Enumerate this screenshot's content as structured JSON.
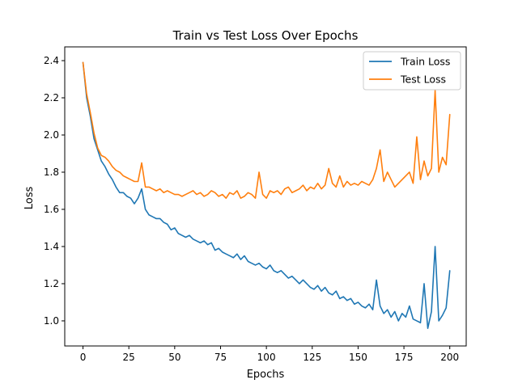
{
  "chart_data": {
    "type": "line",
    "title": "Train vs Test Loss Over Epochs",
    "xlabel": "Epochs",
    "ylabel": "Loss",
    "xlim": [
      -9.95,
      208.95
    ],
    "ylim": [
      0.865,
      2.474
    ],
    "xticks": [
      0,
      25,
      50,
      75,
      100,
      125,
      150,
      175,
      200
    ],
    "yticks": [
      1.0,
      1.2,
      1.4,
      1.6,
      1.8,
      2.0,
      2.2,
      2.4
    ],
    "grid": false,
    "legend": "top-right",
    "series": [
      {
        "name": "Train Loss",
        "color": "#1f77b4",
        "x": [
          0,
          2,
          4,
          6,
          8,
          10,
          12,
          14,
          16,
          18,
          20,
          22,
          24,
          26,
          28,
          30,
          32,
          34,
          36,
          38,
          40,
          42,
          44,
          46,
          48,
          50,
          52,
          54,
          56,
          58,
          60,
          62,
          64,
          66,
          68,
          70,
          72,
          74,
          76,
          78,
          80,
          82,
          84,
          86,
          88,
          90,
          92,
          94,
          96,
          98,
          100,
          102,
          104,
          106,
          108,
          110,
          112,
          114,
          116,
          118,
          120,
          122,
          124,
          126,
          128,
          130,
          132,
          134,
          136,
          138,
          140,
          142,
          144,
          146,
          148,
          150,
          152,
          154,
          156,
          158,
          160,
          162,
          164,
          166,
          168,
          170,
          172,
          174,
          176,
          178,
          180,
          182,
          184,
          186,
          188,
          190,
          192,
          194,
          196,
          198,
          200
        ],
        "y": [
          2.39,
          2.2,
          2.1,
          1.98,
          1.92,
          1.86,
          1.83,
          1.79,
          1.76,
          1.72,
          1.69,
          1.69,
          1.67,
          1.66,
          1.63,
          1.66,
          1.71,
          1.6,
          1.57,
          1.56,
          1.55,
          1.55,
          1.53,
          1.52,
          1.49,
          1.5,
          1.47,
          1.46,
          1.45,
          1.46,
          1.44,
          1.43,
          1.42,
          1.43,
          1.41,
          1.42,
          1.38,
          1.39,
          1.37,
          1.36,
          1.35,
          1.34,
          1.36,
          1.33,
          1.35,
          1.32,
          1.31,
          1.3,
          1.31,
          1.29,
          1.28,
          1.3,
          1.27,
          1.26,
          1.27,
          1.25,
          1.23,
          1.24,
          1.22,
          1.2,
          1.22,
          1.2,
          1.18,
          1.17,
          1.19,
          1.16,
          1.18,
          1.15,
          1.14,
          1.16,
          1.12,
          1.13,
          1.11,
          1.12,
          1.09,
          1.1,
          1.08,
          1.07,
          1.09,
          1.06,
          1.22,
          1.08,
          1.04,
          1.06,
          1.02,
          1.05,
          1.0,
          1.04,
          1.02,
          1.08,
          1.01,
          1.0,
          0.99,
          1.2,
          0.96,
          1.05,
          1.4,
          1.0,
          1.03,
          1.07,
          1.27
        ]
      },
      {
        "name": "Test Loss",
        "color": "#ff7f0e",
        "x": [
          0,
          2,
          4,
          6,
          8,
          10,
          12,
          14,
          16,
          18,
          20,
          22,
          24,
          26,
          28,
          30,
          32,
          34,
          36,
          38,
          40,
          42,
          44,
          46,
          48,
          50,
          52,
          54,
          56,
          58,
          60,
          62,
          64,
          66,
          68,
          70,
          72,
          74,
          76,
          78,
          80,
          82,
          84,
          86,
          88,
          90,
          92,
          94,
          96,
          98,
          100,
          102,
          104,
          106,
          108,
          110,
          112,
          114,
          116,
          118,
          120,
          122,
          124,
          126,
          128,
          130,
          132,
          134,
          136,
          138,
          140,
          142,
          144,
          146,
          148,
          150,
          152,
          154,
          156,
          158,
          160,
          162,
          164,
          166,
          168,
          170,
          172,
          174,
          176,
          178,
          180,
          182,
          184,
          186,
          188,
          190,
          192,
          194,
          196,
          198,
          200
        ],
        "y": [
          2.39,
          2.22,
          2.12,
          2.01,
          1.93,
          1.89,
          1.88,
          1.86,
          1.83,
          1.81,
          1.8,
          1.78,
          1.77,
          1.76,
          1.75,
          1.75,
          1.85,
          1.72,
          1.72,
          1.71,
          1.7,
          1.71,
          1.69,
          1.7,
          1.69,
          1.68,
          1.68,
          1.67,
          1.68,
          1.69,
          1.7,
          1.68,
          1.69,
          1.67,
          1.68,
          1.7,
          1.69,
          1.67,
          1.68,
          1.66,
          1.69,
          1.68,
          1.7,
          1.66,
          1.67,
          1.69,
          1.68,
          1.66,
          1.8,
          1.68,
          1.66,
          1.7,
          1.69,
          1.7,
          1.68,
          1.71,
          1.72,
          1.69,
          1.7,
          1.71,
          1.73,
          1.7,
          1.72,
          1.71,
          1.74,
          1.71,
          1.73,
          1.82,
          1.74,
          1.72,
          1.78,
          1.72,
          1.75,
          1.73,
          1.74,
          1.73,
          1.75,
          1.74,
          1.73,
          1.76,
          1.82,
          1.92,
          1.75,
          1.8,
          1.76,
          1.72,
          1.74,
          1.76,
          1.78,
          1.8,
          1.74,
          1.99,
          1.76,
          1.86,
          1.78,
          1.82,
          2.24,
          1.8,
          1.88,
          1.84,
          2.11
        ]
      }
    ]
  }
}
